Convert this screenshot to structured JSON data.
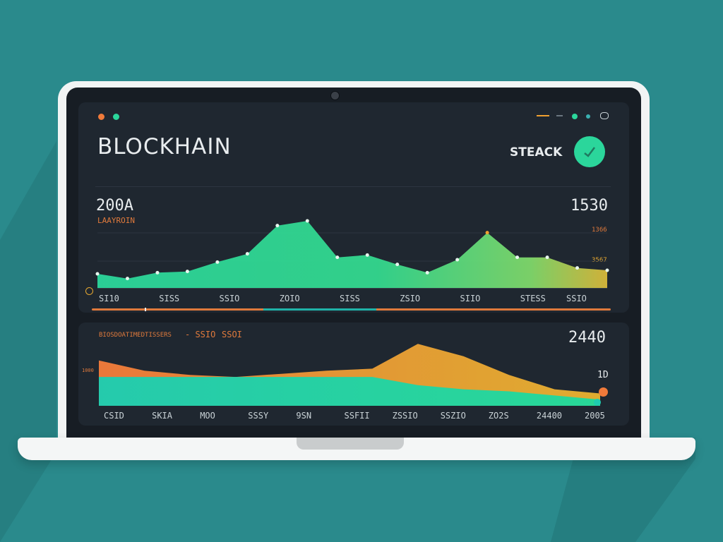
{
  "app": {
    "title": "BLOCKHAIN",
    "header_label": "STEACK",
    "icon": "checkmark-icon"
  },
  "colors": {
    "background": "#2a8a8c",
    "screen": "#171d24",
    "panel": "#1f2730",
    "accent_green": "#2bd69b",
    "accent_teal": "#1fd1b4",
    "accent_orange": "#f07a3a",
    "accent_yellow": "#e6a830"
  },
  "top_chart": {
    "value_left": "200A",
    "sub_label": "LAAYROIN",
    "value_right": "1530",
    "right_label_1": "1366",
    "right_label_2": "3567",
    "x_ticks": [
      "SI10",
      "SISS",
      "SSIO",
      "ZOIO",
      "SISS",
      "ZSIO",
      "SIIO",
      "STESS",
      "SSIO"
    ]
  },
  "bottom_chart": {
    "label": "BIOSDOATIMEDTISSERS",
    "label_2": "- SSIO",
    "label_3": "SSOI",
    "value_right": "2440",
    "side_value": "1D",
    "left_small": "1000",
    "x_ticks": [
      "CSID",
      "SKIA",
      "MOO",
      "SSSY",
      "9SN",
      "SSFII",
      "ZSSIO",
      "SSZIO",
      "ZO2S",
      "24400",
      "2005"
    ]
  },
  "chart_data": [
    {
      "type": "area",
      "series": [
        {
          "values": [
            12,
            8,
            13,
            14,
            22,
            29,
            53,
            57,
            26,
            28,
            20,
            13,
            24,
            47,
            26,
            26,
            17,
            15
          ]
        }
      ],
      "ylim": [
        0,
        60
      ]
    },
    {
      "type": "area",
      "series": [
        {
          "values": [
            44,
            34,
            30,
            28,
            31,
            34,
            36,
            60,
            48,
            30,
            16,
            12
          ]
        },
        {
          "values": [
            28,
            28,
            28,
            28,
            28,
            28,
            28,
            20,
            16,
            14,
            10,
            6
          ]
        }
      ],
      "ylim": [
        0,
        65
      ]
    }
  ]
}
